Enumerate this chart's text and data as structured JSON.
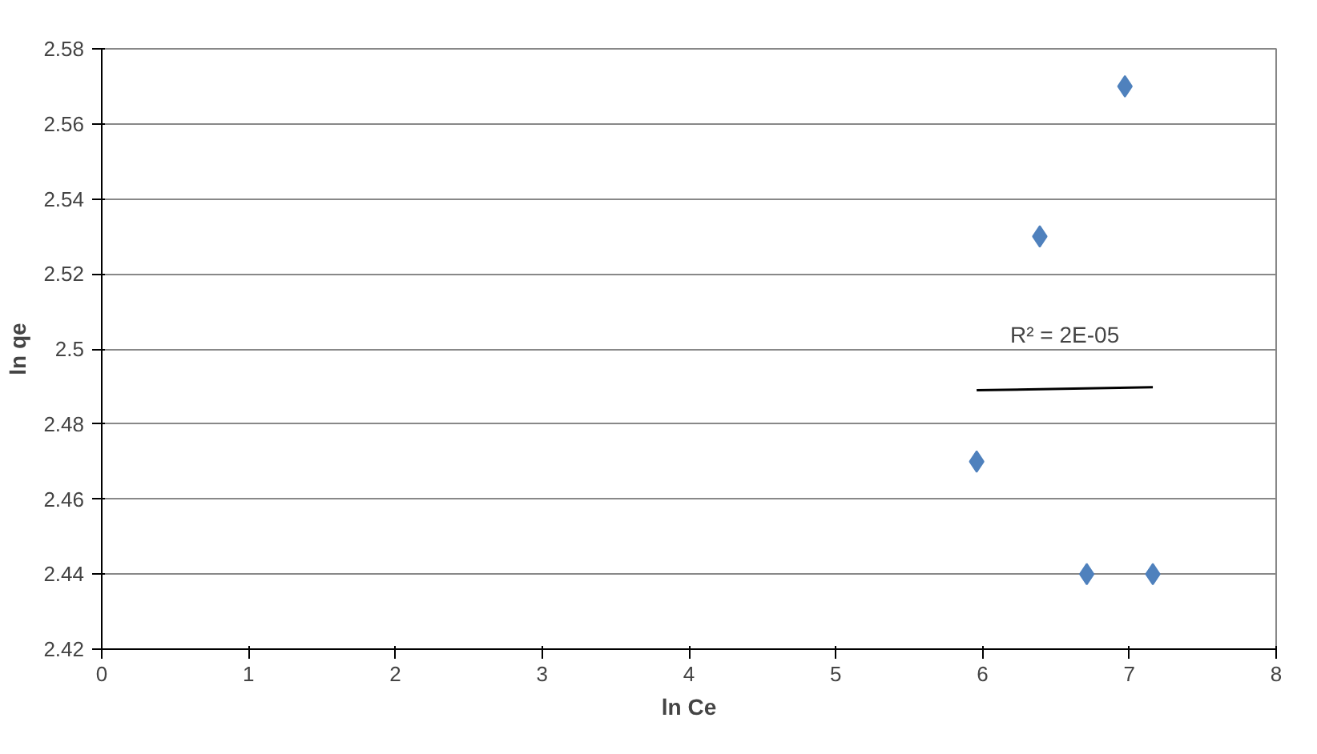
{
  "chart_data": {
    "type": "scatter",
    "xlabel": "ln Ce",
    "ylabel": "ln qe",
    "x": [
      5.96,
      6.39,
      6.97,
      6.71,
      7.16
    ],
    "series": [
      {
        "color": "#4f81bd",
        "values": [
          2.47,
          2.53,
          2.57,
          2.44,
          2.44
        ],
        "marker": "diamond"
      },
      {
        "type": "line",
        "color": "#000000",
        "x": [
          5.96,
          7.16
        ],
        "values": [
          2.489,
          2.4898
        ]
      }
    ],
    "annotations": [
      "R² = 2E-05"
    ],
    "xlim": [
      0,
      8
    ],
    "ylim": [
      2.42,
      2.58
    ],
    "xticks": [
      0,
      1,
      2,
      3,
      4,
      5,
      6,
      7,
      8
    ],
    "yticks": [
      2.42,
      2.44,
      2.46,
      2.48,
      2.5,
      2.52,
      2.54,
      2.56,
      2.58
    ],
    "grid": "y"
  }
}
